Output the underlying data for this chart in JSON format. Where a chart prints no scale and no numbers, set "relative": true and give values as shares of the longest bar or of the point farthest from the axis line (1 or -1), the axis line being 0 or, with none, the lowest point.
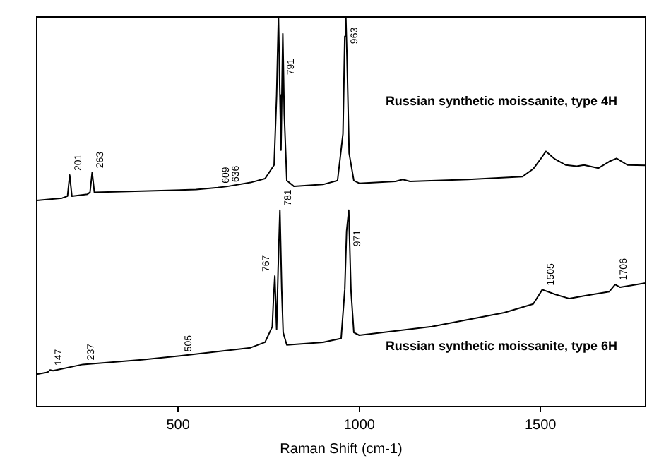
{
  "chart_data": {
    "type": "line",
    "relative": true,
    "xlabel": "Raman Shift (cm-1)",
    "xlim": [
      110,
      1790
    ],
    "xticks": [
      500,
      1000,
      1500
    ],
    "grid": false,
    "legend": false,
    "marker": "none",
    "line_style": "solid",
    "series": [
      {
        "name": "Russian synthetic moissanite, type 4H",
        "color": "#000000",
        "x": [
          110,
          180,
          195,
          201,
          207,
          250,
          257,
          263,
          269,
          400,
          550,
          609,
          636,
          700,
          740,
          765,
          772,
          777,
          781,
          784,
          789,
          793,
          800,
          820,
          900,
          940,
          955,
          960,
          963,
          966,
          972,
          985,
          1000,
          1100,
          1120,
          1140,
          1300,
          1450,
          1480,
          1500,
          1515,
          1540,
          1570,
          1600,
          1620,
          1660,
          1690,
          1710,
          1740,
          1790
        ],
        "values": [
          0.529,
          0.535,
          0.54,
          0.594,
          0.54,
          0.545,
          0.55,
          0.601,
          0.55,
          0.553,
          0.557,
          0.562,
          0.565,
          0.575,
          0.585,
          0.62,
          0.8,
          1.0,
          0.8,
          0.658,
          0.957,
          0.75,
          0.58,
          0.565,
          0.57,
          0.58,
          0.7,
          0.95,
          1.0,
          0.9,
          0.65,
          0.58,
          0.573,
          0.578,
          0.583,
          0.578,
          0.583,
          0.59,
          0.61,
          0.635,
          0.655,
          0.635,
          0.62,
          0.617,
          0.62,
          0.612,
          0.629,
          0.637,
          0.62,
          0.619
        ]
      },
      {
        "name": "Russian synthetic moissanite, type 6H",
        "color": "#000000",
        "x": [
          110,
          140,
          147,
          155,
          237,
          400,
          505,
          700,
          740,
          760,
          763,
          767,
          770,
          772,
          776,
          781,
          786,
          790,
          800,
          900,
          950,
          960,
          965,
          971,
          977,
          985,
          1000,
          1200,
          1400,
          1480,
          1505,
          1540,
          1580,
          1620,
          1690,
          1706,
          1720,
          1790
        ],
        "values": [
          0.083,
          0.088,
          0.094,
          0.092,
          0.108,
          0.12,
          0.13,
          0.151,
          0.165,
          0.205,
          0.27,
          0.335,
          0.25,
          0.198,
          0.35,
          0.504,
          0.3,
          0.19,
          0.158,
          0.165,
          0.175,
          0.3,
          0.45,
          0.504,
          0.3,
          0.19,
          0.183,
          0.205,
          0.241,
          0.263,
          0.3,
          0.288,
          0.277,
          0.284,
          0.295,
          0.313,
          0.306,
          0.317
        ]
      }
    ],
    "annotations": [
      {
        "text": "201",
        "x": 201,
        "y": 0.594
      },
      {
        "text": "263",
        "x": 263,
        "y": 0.601
      },
      {
        "text": "609",
        "x": 609,
        "y": 0.562
      },
      {
        "text": "636",
        "x": 636,
        "y": 0.565
      },
      {
        "text": "791",
        "x": 789,
        "y": 0.84
      },
      {
        "text": "963",
        "x": 963,
        "y": 0.92
      },
      {
        "text": "147",
        "x": 147,
        "y": 0.094
      },
      {
        "text": "237",
        "x": 237,
        "y": 0.108
      },
      {
        "text": "505",
        "x": 505,
        "y": 0.13
      },
      {
        "text": "767",
        "x": 767,
        "y": 0.335
      },
      {
        "text": "781",
        "x": 781,
        "y": 0.504
      },
      {
        "text": "971",
        "x": 971,
        "y": 0.4
      },
      {
        "text": "1505",
        "x": 1505,
        "y": 0.3
      },
      {
        "text": "1706",
        "x": 1706,
        "y": 0.313
      }
    ]
  }
}
